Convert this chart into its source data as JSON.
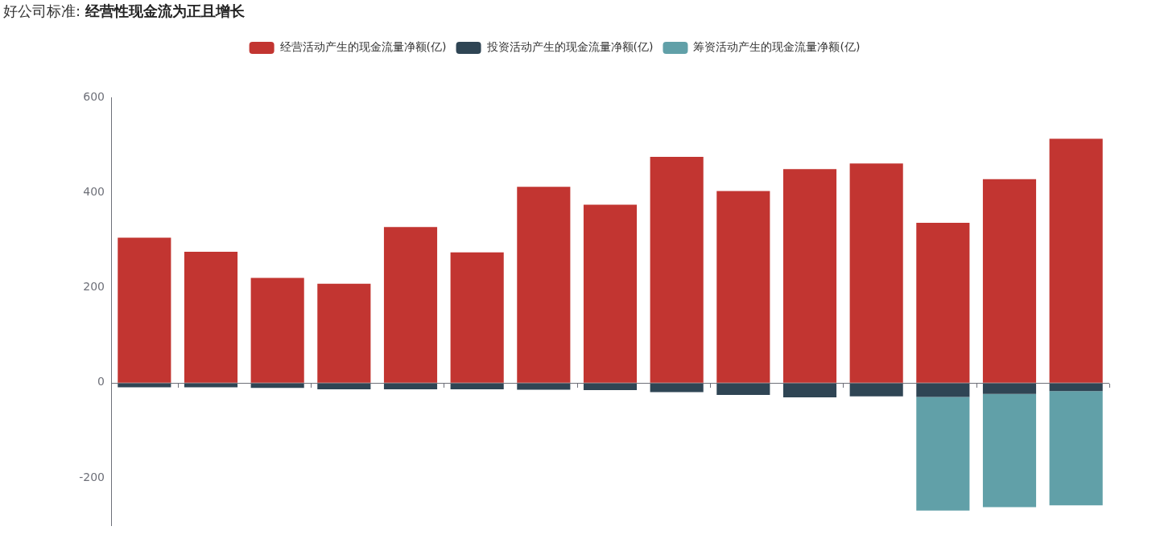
{
  "chart_data": {
    "type": "bar",
    "title": "好公司标准:",
    "subtitle": "经营性现金流为正且增长",
    "categories": [
      null,
      null,
      null,
      null,
      null,
      null,
      null,
      null,
      null,
      null,
      null,
      null,
      null,
      null,
      null
    ],
    "series": [
      {
        "name": "经营活动产生的现金流量净额(亿)",
        "color": "#c23531",
        "values": [
          305,
          275,
          220,
          208,
          327,
          274,
          412,
          374,
          475,
          403,
          449,
          461,
          336,
          428,
          513
        ]
      },
      {
        "name": "投资活动产生的现金流量净额(亿)",
        "color": "#2f4554",
        "values": [
          -10,
          -10,
          -11,
          -14,
          -14,
          -14,
          -15,
          -16,
          -20,
          -26,
          -31,
          -29,
          -30,
          -24,
          -18
        ]
      },
      {
        "name": "筹资活动产生的现金流量净额(亿)",
        "color": "#61a0a8",
        "values": [
          null,
          null,
          null,
          null,
          null,
          null,
          null,
          null,
          null,
          null,
          null,
          null,
          -239,
          -238,
          -240
        ]
      }
    ],
    "stacked": true,
    "ylim": [
      -300,
      600
    ],
    "yticks": [
      -200,
      0,
      200,
      400,
      600
    ],
    "ref_lines": [
      {
        "axis": "y",
        "value": 0,
        "color": "#6e7079"
      }
    ],
    "grid": false,
    "legend": "top",
    "tick_labels": "y"
  }
}
